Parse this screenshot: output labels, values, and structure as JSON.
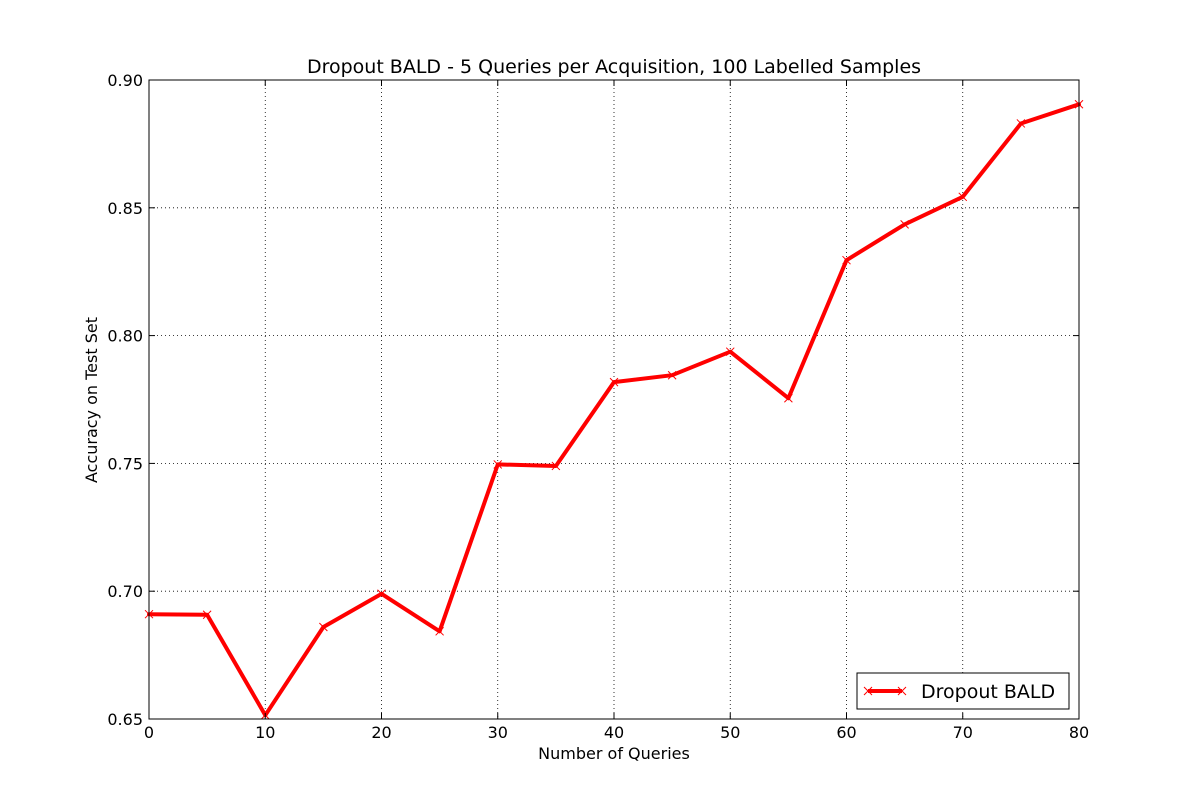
{
  "chart_data": {
    "type": "line",
    "title": "Dropout BALD - 5 Queries per Acquisition, 100 Labelled Samples",
    "xlabel": "Number of Queries",
    "ylabel": "Accuracy on Test Set",
    "xlim": [
      0,
      80
    ],
    "ylim": [
      0.65,
      0.9
    ],
    "xticks": [
      "0",
      "10",
      "20",
      "30",
      "40",
      "50",
      "60",
      "70",
      "80"
    ],
    "yticks": [
      "0.65",
      "0.70",
      "0.75",
      "0.80",
      "0.85",
      "0.90"
    ],
    "grid": true,
    "legend_position": "bottom-right",
    "series": [
      {
        "name": "Dropout BALD",
        "color": "#ff0000",
        "marker": "x",
        "x": [
          0,
          5,
          10,
          15,
          20,
          25,
          30,
          35,
          40,
          45,
          50,
          55,
          60,
          65,
          70,
          75,
          80
        ],
        "y": [
          0.691,
          0.6908,
          0.6515,
          0.686,
          0.699,
          0.6843,
          0.7496,
          0.749,
          0.7818,
          0.7845,
          0.7937,
          0.7755,
          0.8295,
          0.8435,
          0.8543,
          0.883,
          0.8905
        ]
      }
    ]
  }
}
